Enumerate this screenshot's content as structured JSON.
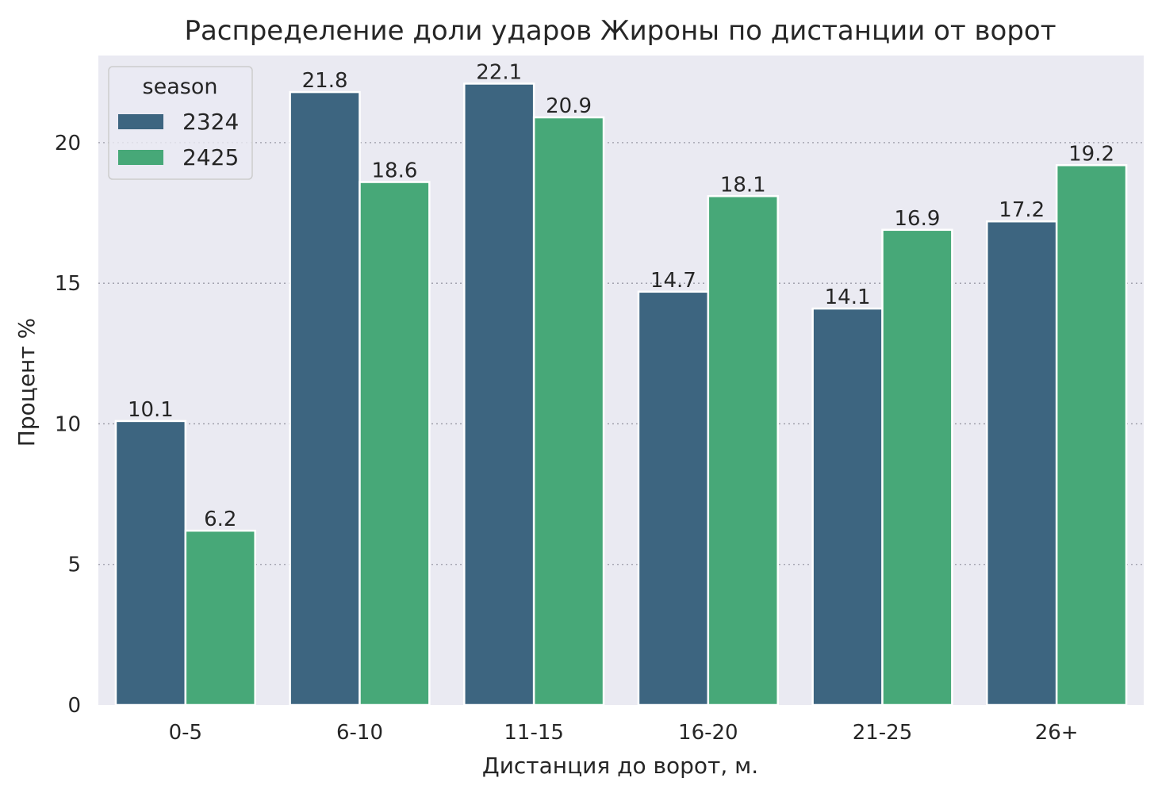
{
  "chart_data": {
    "type": "bar",
    "title": "Распределение доли ударов Жироны по дистанции от ворот",
    "xlabel": "Дистанция до ворот, м.",
    "ylabel": "Процент %",
    "categories": [
      "0-5",
      "6-10",
      "11-15",
      "16-20",
      "21-25",
      "26+"
    ],
    "series": [
      {
        "name": "2324",
        "values": [
          10.1,
          21.8,
          22.1,
          14.7,
          14.1,
          17.2
        ],
        "color": "#3d6580"
      },
      {
        "name": "2425",
        "values": [
          6.2,
          18.6,
          20.9,
          18.1,
          16.9,
          19.2
        ],
        "color": "#47a878"
      }
    ],
    "data_labels": [
      [
        "10.1",
        "21.8",
        "22.1",
        "14.7",
        "14.1",
        "17.2"
      ],
      [
        "6.2",
        "18.6",
        "20.9",
        "18.1",
        "16.9",
        "19.2"
      ]
    ],
    "ylim": [
      0,
      23.1
    ],
    "yticks": [
      0,
      5,
      10,
      15,
      20
    ],
    "ytick_labels": [
      "0",
      "5",
      "10",
      "15",
      "20"
    ],
    "grid": true,
    "legend": {
      "title": "season",
      "placement": "top-left"
    },
    "background_color": "#eaeaf2"
  }
}
